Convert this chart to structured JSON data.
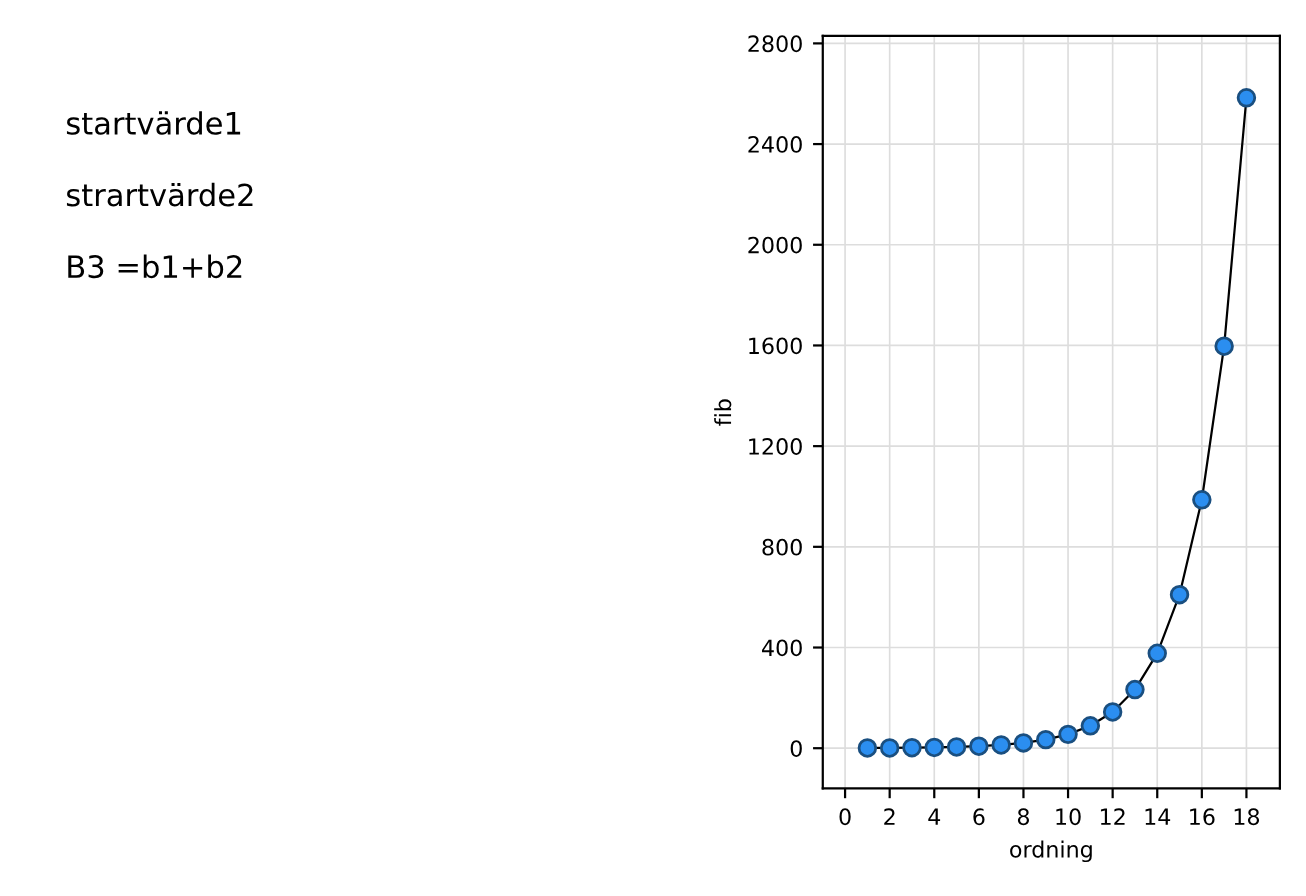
{
  "chart_data": {
    "type": "line",
    "xlabel": "ordning",
    "ylabel": "fib",
    "x": [
      1,
      2,
      3,
      4,
      5,
      6,
      7,
      8,
      9,
      10,
      11,
      12,
      13,
      14,
      15,
      16,
      17,
      18
    ],
    "series": [
      {
        "color": "#2b8ef0",
        "values": [
          1,
          1,
          2,
          3,
          5,
          8,
          13,
          21,
          34,
          55,
          89,
          144,
          233,
          377,
          610,
          987,
          1597,
          2584
        ]
      }
    ],
    "xlim": [
      -1,
      19.5
    ],
    "ylim": [
      -160,
      2830
    ],
    "xticks": [
      0,
      2,
      4,
      6,
      8,
      10,
      12,
      14,
      16,
      18
    ],
    "yticks": [
      0,
      400,
      800,
      1200,
      1600,
      2000,
      2400,
      2800
    ],
    "grid": true,
    "marker": "circle",
    "line_style": "solid",
    "annotations": [
      "startvärde1",
      "strartvärde2",
      "B3 =b1+b2"
    ]
  }
}
